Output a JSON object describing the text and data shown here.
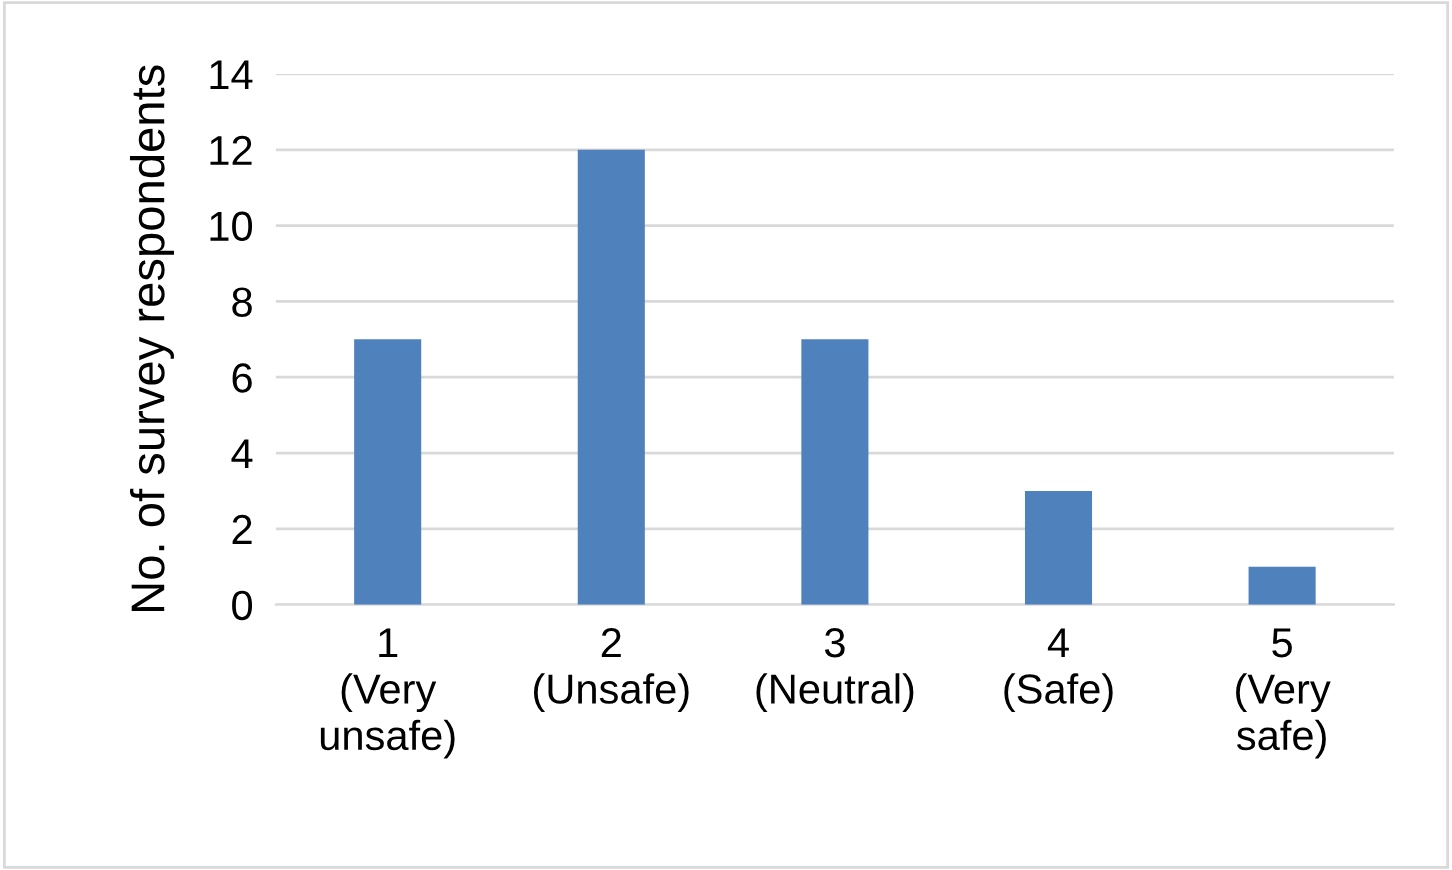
{
  "chart_data": {
    "type": "bar",
    "ylabel": "No. of survey respondents",
    "categories": [
      "1\n(Very\nunsafe)",
      "2\n(Unsafe)",
      "3\n(Neutral)",
      "4\n(Safe)",
      "5\n(Very\nsafe)"
    ],
    "values": [
      7,
      12,
      7,
      3,
      1
    ],
    "color": "#4f81bd",
    "ylim": [
      0,
      14
    ],
    "yticks": [
      0,
      2,
      4,
      6,
      8,
      10,
      12,
      14
    ],
    "grid": "y",
    "legend": false
  }
}
